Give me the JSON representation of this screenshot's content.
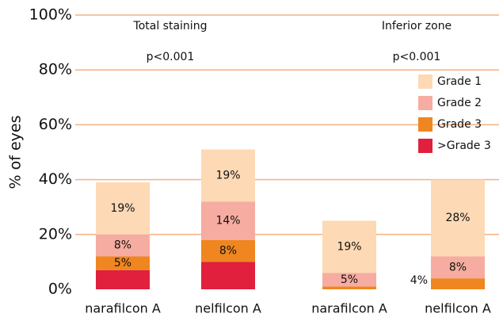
{
  "chart_data": {
    "type": "stacked-bar",
    "ylabel": "% of eyes",
    "annotations": [
      "Total staining",
      "p<0.001",
      "Inferior zone",
      "p<0.001"
    ],
    "categories": [
      "narafilcon A",
      "nelfilcon A",
      "narafilcon A",
      "nelfilcon A"
    ],
    "series": [
      {
        "name": ">Grade 3",
        "color": "#e0203c",
        "values": [
          7,
          10,
          0,
          0
        ],
        "value_labels": [
          null,
          null,
          null,
          null
        ]
      },
      {
        "name": "Grade 3",
        "color": "#f0861f",
        "values": [
          5,
          8,
          1,
          4
        ],
        "value_labels": [
          "5%",
          "8%",
          null,
          "4%"
        ]
      },
      {
        "name": "Grade 2",
        "color": "#f6aca0",
        "values": [
          8,
          14,
          5,
          8
        ],
        "value_labels": [
          "8%",
          "14%",
          "5%",
          "8%"
        ]
      },
      {
        "name": "Grade 1",
        "color": "#fdd9b5",
        "values": [
          19,
          19,
          19,
          28
        ],
        "value_labels": [
          "19%",
          "19%",
          "19%",
          "28%"
        ]
      }
    ],
    "ylim": [
      0,
      100
    ],
    "yticks": [
      {
        "value": 0,
        "label": "0%"
      },
      {
        "value": 20,
        "label": "20%"
      },
      {
        "value": 40,
        "label": "40%"
      },
      {
        "value": 60,
        "label": "60%"
      },
      {
        "value": 80,
        "label": "80%"
      },
      {
        "value": 100,
        "label": "100%"
      }
    ],
    "grid": true,
    "grid_color": "#f4b183",
    "legend": "right"
  }
}
